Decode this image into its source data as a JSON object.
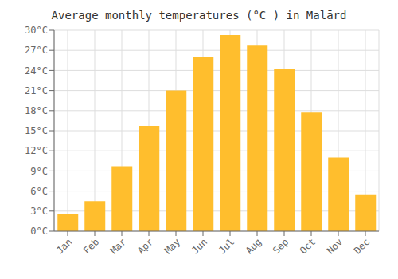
{
  "chart_data": {
    "type": "bar",
    "title": "Average monthly temperatures (°C ) in Malārd",
    "categories": [
      "Jan",
      "Feb",
      "Mar",
      "Apr",
      "May",
      "Jun",
      "Jul",
      "Aug",
      "Sep",
      "Oct",
      "Nov",
      "Dec"
    ],
    "values": [
      2.5,
      4.5,
      9.7,
      15.7,
      21.0,
      26.0,
      29.3,
      27.7,
      24.2,
      17.7,
      11.0,
      5.5
    ],
    "color": "#FFBE2D",
    "ylim": [
      0,
      30
    ],
    "yticks": [
      {
        "value": 0,
        "label": "0°C"
      },
      {
        "value": 3,
        "label": "3°C"
      },
      {
        "value": 6,
        "label": "6°C"
      },
      {
        "value": 9,
        "label": "9°C"
      },
      {
        "value": 12,
        "label": "12°C"
      },
      {
        "value": 15,
        "label": "15°C"
      },
      {
        "value": 18,
        "label": "18°C"
      },
      {
        "value": 21,
        "label": "21°C"
      },
      {
        "value": 24,
        "label": "24°C"
      },
      {
        "value": 27,
        "label": "27°C"
      },
      {
        "value": 30,
        "label": "30°C"
      }
    ],
    "grid": true
  }
}
